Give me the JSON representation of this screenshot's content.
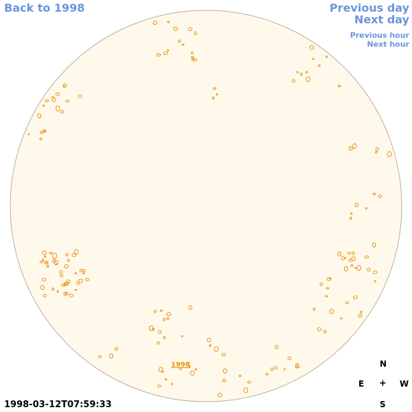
{
  "nav": {
    "back": "Back to 1998",
    "previous_day": "Previous day",
    "next_day": "Next day",
    "previous_hour": "Previous hour",
    "next_hour": "Next hour"
  },
  "disk": {
    "fill_color": "#fff9ec",
    "border_color": "#b8ad9c",
    "contour_color": "#e8900c",
    "year_label": "1998"
  },
  "timestamp": "1998-03-12T07:59:33",
  "compass": {
    "n": "N",
    "e": "E",
    "center": "+",
    "w": "W",
    "s": "S"
  }
}
